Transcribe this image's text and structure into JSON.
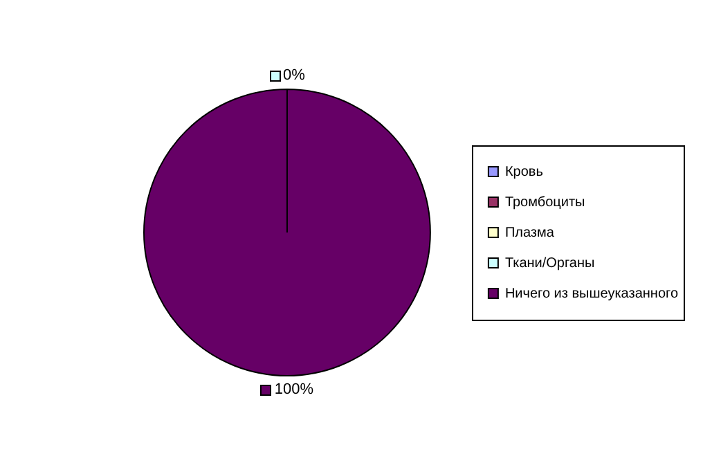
{
  "chart_data": {
    "type": "pie",
    "categories": [
      "Кровь",
      "Тромбоциты",
      "Плазма",
      "Ткани/Органы",
      "Ничего из вышеуказанного"
    ],
    "values": [
      0,
      0,
      0,
      0,
      100
    ],
    "colors": [
      "#9999ff",
      "#993366",
      "#ffffcc",
      "#ccffff",
      "#660066"
    ],
    "value_labels": [
      null,
      null,
      null,
      "0%",
      "100%"
    ],
    "legend": "right"
  }
}
